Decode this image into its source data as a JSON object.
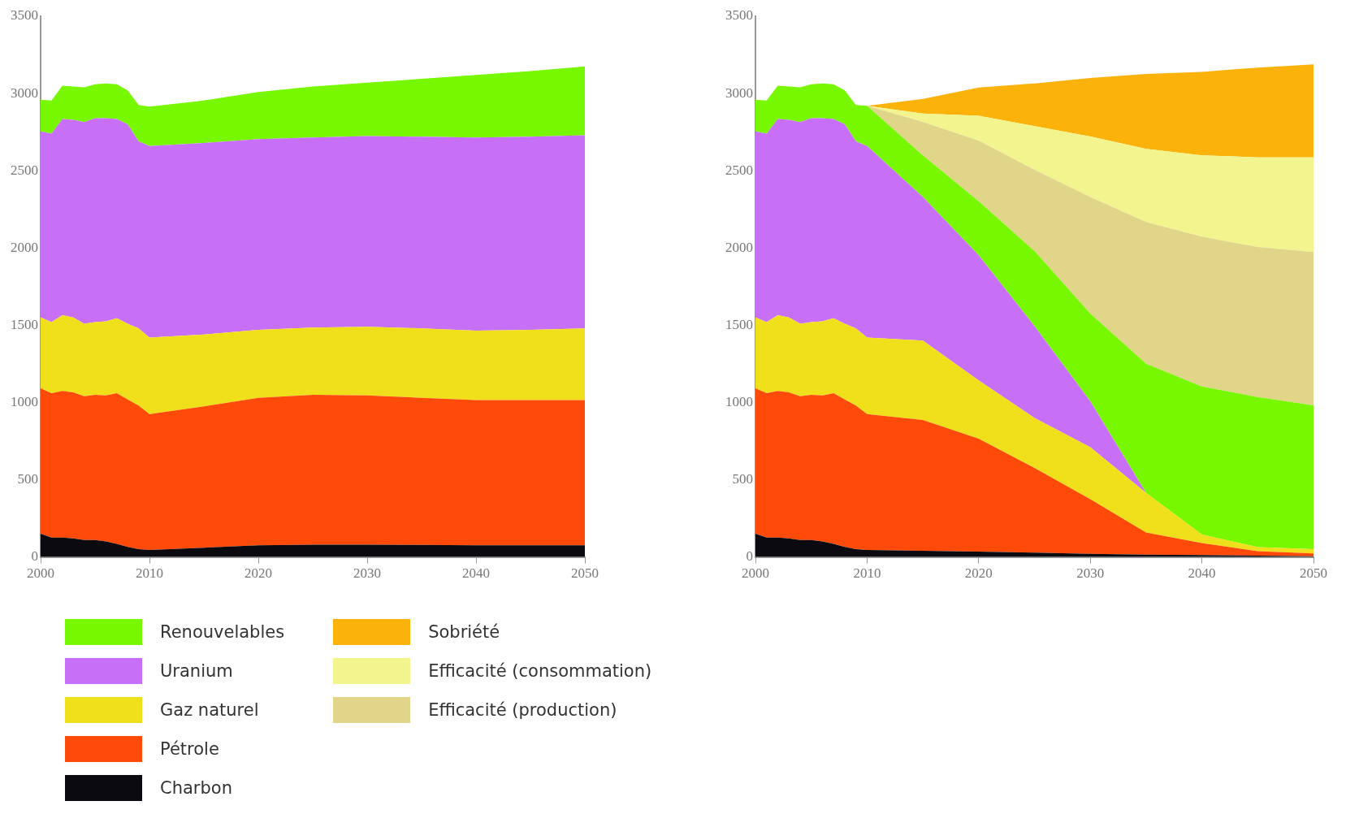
{
  "chart_data": [
    {
      "type": "area",
      "stacked": true,
      "marker": "none",
      "grid": false,
      "legend": "bottom",
      "x": [
        2000,
        2001,
        2002,
        2003,
        2004,
        2005,
        2006,
        2007,
        2008,
        2009,
        2010,
        2015,
        2020,
        2025,
        2030,
        2035,
        2040,
        2045,
        2050
      ],
      "xlim": [
        2000,
        2050
      ],
      "xticks": [
        2000,
        2010,
        2020,
        2030,
        2040,
        2050
      ],
      "ylim": [
        0,
        3500
      ],
      "yticks": [
        0,
        500,
        1000,
        1500,
        2000,
        2500,
        3000,
        3500
      ],
      "series": [
        {
          "name": "Charbon",
          "color": "#0a0a10",
          "values": [
            150,
            125,
            125,
            120,
            110,
            110,
            100,
            85,
            65,
            50,
            45,
            60,
            75,
            80,
            80,
            78,
            75,
            75,
            75
          ]
        },
        {
          "name": "Pétrole",
          "color": "#ff4a0a",
          "values": [
            942,
            935,
            950,
            945,
            930,
            940,
            945,
            975,
            955,
            930,
            880,
            915,
            955,
            970,
            965,
            952,
            940,
            940,
            940
          ]
        },
        {
          "name": "Gaz naturel",
          "color": "#f0e01c",
          "values": [
            458,
            460,
            490,
            485,
            470,
            470,
            480,
            485,
            490,
            500,
            495,
            465,
            440,
            435,
            445,
            450,
            450,
            455,
            465
          ]
        },
        {
          "name": "Uranium",
          "color": "#c86ff8",
          "values": [
            1205,
            1220,
            1270,
            1280,
            1305,
            1320,
            1315,
            1290,
            1290,
            1210,
            1240,
            1240,
            1235,
            1230,
            1235,
            1240,
            1250,
            1250,
            1250
          ]
        },
        {
          "name": "Renouvelables",
          "color": "#77f700",
          "values": [
            205,
            215,
            215,
            215,
            225,
            220,
            225,
            225,
            220,
            235,
            255,
            275,
            305,
            330,
            345,
            375,
            405,
            425,
            445
          ]
        }
      ]
    },
    {
      "type": "area",
      "stacked": true,
      "marker": "none",
      "grid": false,
      "legend": "bottom",
      "x": [
        2000,
        2001,
        2002,
        2003,
        2004,
        2005,
        2006,
        2007,
        2008,
        2009,
        2010,
        2015,
        2020,
        2025,
        2030,
        2035,
        2040,
        2045,
        2050
      ],
      "xlim": [
        2000,
        2050
      ],
      "xticks": [
        2000,
        2010,
        2020,
        2030,
        2040,
        2050
      ],
      "ylim": [
        0,
        3500
      ],
      "yticks": [
        0,
        500,
        1000,
        1500,
        2000,
        2500,
        3000,
        3500
      ],
      "series": [
        {
          "name": "Charbon",
          "color": "#0a0a10",
          "values": [
            150,
            125,
            125,
            120,
            110,
            110,
            100,
            85,
            65,
            50,
            45,
            40,
            35,
            28,
            20,
            15,
            12,
            8,
            5
          ]
        },
        {
          "name": "Pétrole",
          "color": "#ff4a0a",
          "values": [
            942,
            935,
            950,
            945,
            930,
            940,
            945,
            975,
            955,
            930,
            880,
            847,
            730,
            548,
            354,
            143,
            78,
            29,
            18
          ]
        },
        {
          "name": "Gaz naturel",
          "color": "#f0e01c",
          "values": [
            458,
            460,
            490,
            485,
            470,
            470,
            480,
            485,
            490,
            500,
            495,
            513,
            378,
            324,
            337,
            256,
            55,
            26,
            27
          ]
        },
        {
          "name": "Uranium",
          "color": "#c86ff8",
          "values": [
            1205,
            1220,
            1270,
            1280,
            1305,
            1320,
            1315,
            1290,
            1290,
            1210,
            1240,
            930,
            810,
            594,
            297,
            0,
            0,
            0,
            0
          ]
        },
        {
          "name": "Renouvelables",
          "color": "#77f700",
          "values": [
            205,
            215,
            215,
            215,
            225,
            220,
            225,
            225,
            220,
            235,
            260,
            270,
            350,
            486,
            567,
            837,
            958,
            972,
            931
          ]
        },
        {
          "name": "Efficacité (production)",
          "color": "#e1d58a",
          "values": [
            null,
            null,
            null,
            null,
            null,
            null,
            null,
            null,
            null,
            null,
            0,
            216,
            392,
            526,
            755,
            917,
            971,
            971,
            993
          ]
        },
        {
          "name": "Efficacité (consommation)",
          "color": "#f2f58e",
          "values": [
            null,
            null,
            null,
            null,
            null,
            null,
            null,
            null,
            null,
            null,
            0,
            54,
            161,
            283,
            392,
            473,
            526,
            581,
            613
          ]
        },
        {
          "name": "Sobriété",
          "color": "#fbb30b",
          "values": [
            null,
            null,
            null,
            null,
            null,
            null,
            null,
            null,
            null,
            null,
            0,
            95,
            182,
            276,
            378,
            486,
            540,
            581,
            602
          ]
        }
      ]
    }
  ]
}
